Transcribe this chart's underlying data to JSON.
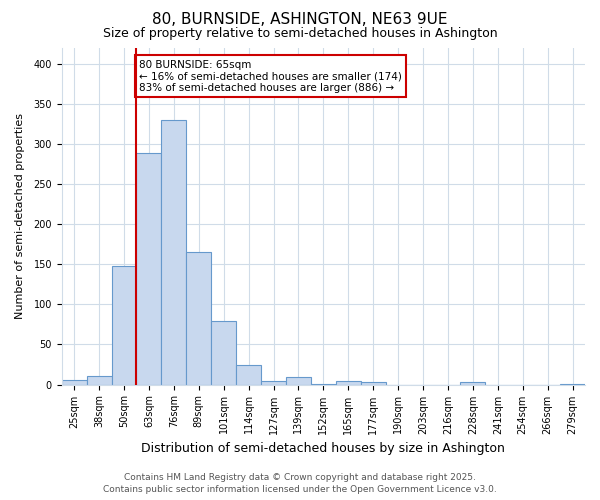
{
  "title": "80, BURNSIDE, ASHINGTON, NE63 9UE",
  "subtitle": "Size of property relative to semi-detached houses in Ashington",
  "xlabel": "Distribution of semi-detached houses by size in Ashington",
  "ylabel": "Number of semi-detached properties",
  "bins": [
    "25sqm",
    "38sqm",
    "50sqm",
    "63sqm",
    "76sqm",
    "89sqm",
    "101sqm",
    "114sqm",
    "127sqm",
    "139sqm",
    "152sqm",
    "165sqm",
    "177sqm",
    "190sqm",
    "203sqm",
    "216sqm",
    "228sqm",
    "241sqm",
    "254sqm",
    "266sqm",
    "279sqm"
  ],
  "values": [
    6,
    11,
    148,
    288,
    330,
    165,
    79,
    24,
    5,
    10,
    1,
    4,
    3,
    0,
    0,
    0,
    3,
    0,
    0,
    0,
    1
  ],
  "bar_color": "#c8d8ee",
  "bar_edge_color": "#6699cc",
  "vline_bin_index": 3,
  "vline_color": "#cc0000",
  "annotation_title": "80 BURNSIDE: 65sqm",
  "annotation_line2": "← 16% of semi-detached houses are smaller (174)",
  "annotation_line3": "83% of semi-detached houses are larger (886) →",
  "annotation_box_facecolor": "#ffffff",
  "annotation_box_edgecolor": "#cc0000",
  "ylim": [
    0,
    420
  ],
  "yticks": [
    0,
    50,
    100,
    150,
    200,
    250,
    300,
    350,
    400
  ],
  "footer_line1": "Contains HM Land Registry data © Crown copyright and database right 2025.",
  "footer_line2": "Contains public sector information licensed under the Open Government Licence v3.0.",
  "bg_color": "#ffffff",
  "plot_bg_color": "#ffffff",
  "grid_color": "#d0dce8",
  "title_fontsize": 11,
  "subtitle_fontsize": 9,
  "xlabel_fontsize": 9,
  "ylabel_fontsize": 8,
  "tick_fontsize": 7,
  "annot_fontsize": 7.5,
  "footer_fontsize": 6.5
}
